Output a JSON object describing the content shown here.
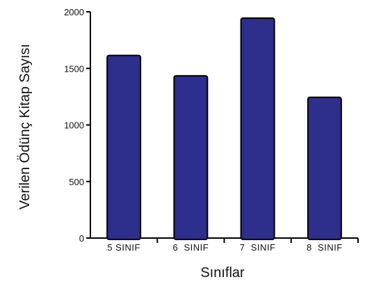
{
  "chart_data": {
    "type": "bar",
    "categories": [
      "5 SINIF",
      "6  SINIF",
      "7  SINIF",
      "8  SINIF"
    ],
    "values": [
      1615,
      1435,
      1945,
      1245
    ],
    "xlabel": "Sınıflar",
    "ylabel": "Verilen Ödünç Kitap Sayısı",
    "ylim": [
      0,
      2000
    ],
    "yticks": [
      0,
      500,
      1000,
      1500,
      2000
    ],
    "grid": false,
    "colors": {
      "bar_fill": "#2E2E8C",
      "bar_stroke": "#000000",
      "axis": "#000000"
    }
  }
}
